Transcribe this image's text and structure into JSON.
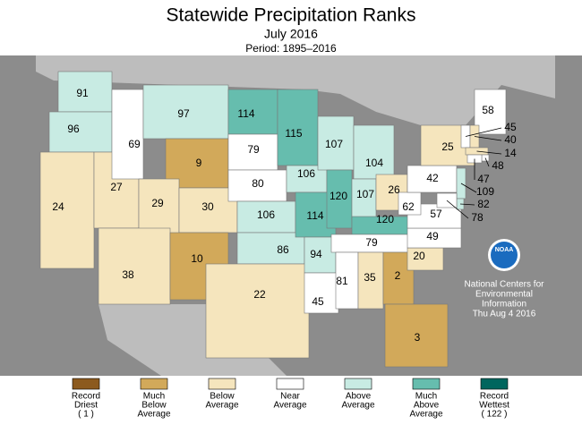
{
  "header": {
    "title": "Statewide Precipitation Ranks",
    "subtitle": "July 2016",
    "period": "Period: 1895–2016"
  },
  "states": [
    {
      "rank": 91,
      "color": "#c8ebe3"
    },
    {
      "rank": 96,
      "color": "#c8ebe3"
    },
    {
      "rank": 24,
      "color": "#f5e5bd"
    },
    {
      "rank": 27,
      "color": "#f5e5bd"
    },
    {
      "rank": 69,
      "color": "#ffffff"
    },
    {
      "rank": 97,
      "color": "#c8ebe3"
    },
    {
      "rank": 9,
      "color": "#d2a95a"
    },
    {
      "rank": 29,
      "color": "#f5e5bd"
    },
    {
      "rank": 38,
      "color": "#f5e5bd"
    },
    {
      "rank": 30,
      "color": "#f5e5bd"
    },
    {
      "rank": 10,
      "color": "#d2a95a"
    },
    {
      "rank": 114,
      "color": "#66bdae"
    },
    {
      "rank": 79,
      "color": "#ffffff"
    },
    {
      "rank": 80,
      "color": "#ffffff"
    },
    {
      "rank": 106,
      "color": "#c8ebe3"
    },
    {
      "rank": 86,
      "color": "#c8ebe3"
    },
    {
      "rank": 22,
      "color": "#f5e5bd"
    },
    {
      "rank": 115,
      "color": "#66bdae"
    },
    {
      "rank": 106,
      "color": "#c8ebe3"
    },
    {
      "rank": 114,
      "color": "#66bdae"
    },
    {
      "rank": 94,
      "color": "#c8ebe3"
    },
    {
      "rank": 45,
      "color": "#ffffff"
    },
    {
      "rank": 107,
      "color": "#c8ebe3"
    },
    {
      "rank": 120,
      "color": "#66bdae"
    },
    {
      "rank": 104,
      "color": "#c8ebe3"
    },
    {
      "rank": 107,
      "color": "#c8ebe3"
    },
    {
      "rank": 26,
      "color": "#f5e5bd"
    },
    {
      "rank": 120,
      "color": "#66bdae"
    },
    {
      "rank": 79,
      "color": "#ffffff"
    },
    {
      "rank": 81,
      "color": "#ffffff"
    },
    {
      "rank": 35,
      "color": "#f5e5bd"
    },
    {
      "rank": 2,
      "color": "#d2a95a"
    },
    {
      "rank": 3,
      "color": "#d2a95a"
    },
    {
      "rank": 20,
      "color": "#f5e5bd"
    },
    {
      "rank": 49,
      "color": "#ffffff"
    },
    {
      "rank": 57,
      "color": "#ffffff"
    },
    {
      "rank": 62,
      "color": "#ffffff"
    },
    {
      "rank": 42,
      "color": "#ffffff"
    },
    {
      "rank": 25,
      "color": "#f5e5bd"
    },
    {
      "rank": 58,
      "color": "#ffffff"
    },
    {
      "rank": 45,
      "color": "#ffffff"
    },
    {
      "rank": 40,
      "color": "#f5e5bd"
    },
    {
      "rank": 14,
      "color": "#f5e5bd"
    },
    {
      "rank": 48,
      "color": "#ffffff"
    },
    {
      "rank": 47,
      "color": "#ffffff"
    },
    {
      "rank": 109,
      "color": "#c8ebe3"
    },
    {
      "rank": 82,
      "color": "#c8ebe3"
    },
    {
      "rank": 78,
      "color": "#ffffff"
    }
  ],
  "legend": [
    {
      "lines": [
        "Record",
        "Driest",
        "( 1 )"
      ],
      "color": "#8c5a1e"
    },
    {
      "lines": [
        "Much",
        "Below",
        "Average"
      ],
      "color": "#d2a95a"
    },
    {
      "lines": [
        "Below",
        "Average"
      ],
      "color": "#f5e5bd"
    },
    {
      "lines": [
        "Near",
        "Average"
      ],
      "color": "#ffffff"
    },
    {
      "lines": [
        "Above",
        "Average"
      ],
      "color": "#c8ebe3"
    },
    {
      "lines": [
        "Much",
        "Above",
        "Average"
      ],
      "color": "#66bdae"
    },
    {
      "lines": [
        "Record",
        "Wettest",
        "( 122 )"
      ],
      "color": "#00665e"
    }
  ],
  "credit": {
    "logo": "NOAA",
    "lines": [
      "National Centers for",
      "Environmental",
      "Information",
      "Thu Aug  4 2016"
    ]
  }
}
